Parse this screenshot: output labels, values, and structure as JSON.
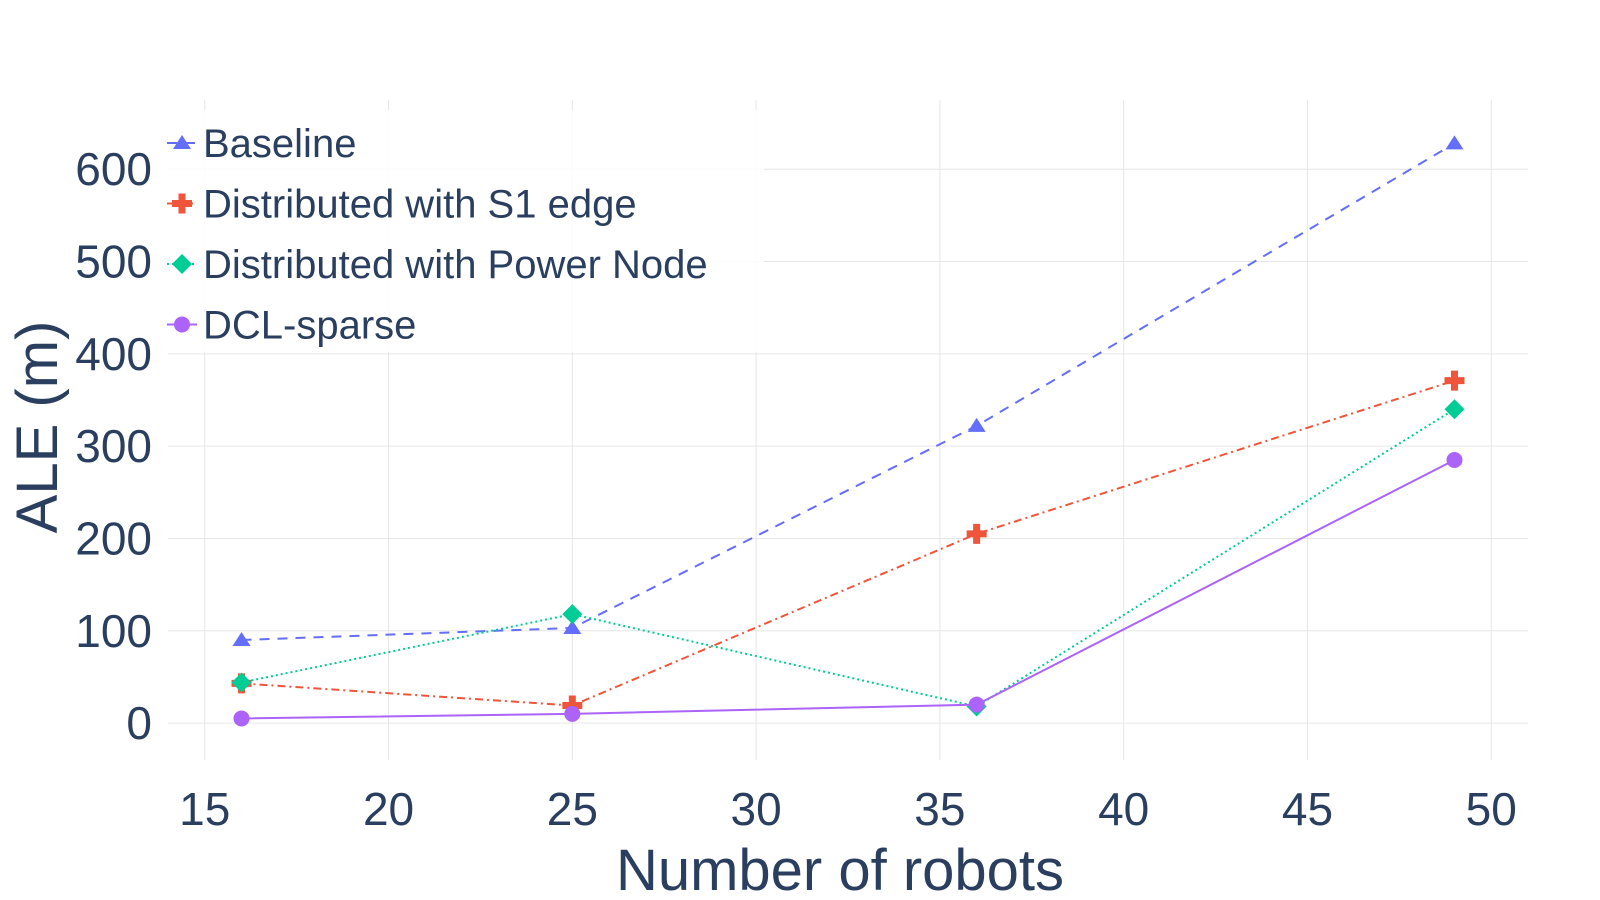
{
  "chart_data": {
    "type": "line",
    "title": "",
    "xlabel": "Number of robots",
    "ylabel": "ALE (m)",
    "xlim": [
      14,
      51
    ],
    "ylim": [
      -40,
      675
    ],
    "x_ticks": [
      15,
      20,
      25,
      30,
      35,
      40,
      45,
      50
    ],
    "y_ticks": [
      0,
      100,
      200,
      300,
      400,
      500,
      600
    ],
    "grid": true,
    "legend_position": "top-left",
    "x": [
      16,
      25,
      36,
      49
    ],
    "series": [
      {
        "name": "Baseline",
        "values": [
          90,
          103,
          322,
          628
        ],
        "color": "#636efa",
        "marker": "triangle",
        "dash": "10,8"
      },
      {
        "name": "Distributed with S1 edge",
        "values": [
          43,
          19,
          205,
          371
        ],
        "color": "#ef553b",
        "marker": "cross",
        "dash": "8,4,2,4"
      },
      {
        "name": "Distributed with Power Node",
        "values": [
          44,
          118,
          18,
          340
        ],
        "color": "#00cc96",
        "marker": "diamond",
        "dash": "2,3"
      },
      {
        "name": "DCL-sparse",
        "values": [
          5,
          10,
          20,
          285
        ],
        "color": "#ab63fa",
        "marker": "circle",
        "dash": ""
      }
    ]
  }
}
